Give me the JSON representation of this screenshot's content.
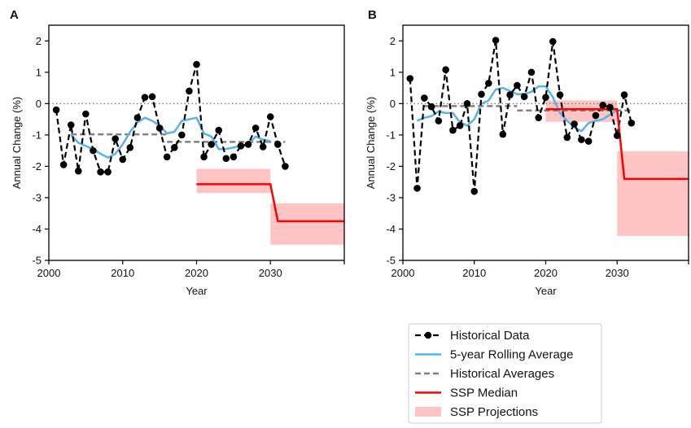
{
  "chart_data": [
    {
      "type": "line",
      "panel_label": "A",
      "xlabel": "Year",
      "ylabel": "Annual Change (%)",
      "xlim": [
        2000,
        2040
      ],
      "ylim": [
        -5,
        2.5
      ],
      "xticks": [
        2000,
        2010,
        2020,
        2030,
        2040
      ],
      "xtick_labels": [
        "2000",
        "2010",
        "2020",
        "2030",
        ""
      ],
      "yticks": [
        -5,
        -4,
        -3,
        -2,
        -1,
        0,
        1,
        2
      ],
      "ytick_labels": [
        "-5",
        "-4",
        "-3",
        "-2",
        "-1",
        "0",
        "1",
        "2"
      ],
      "zero_line": 0,
      "historical": {
        "x": [
          2001,
          2002,
          2003,
          2004,
          2005,
          2006,
          2007,
          2008,
          2009,
          2010,
          2011,
          2012,
          2013,
          2014,
          2015,
          2016,
          2017,
          2018,
          2019,
          2020,
          2021,
          2022,
          2023,
          2024,
          2025,
          2026,
          2027,
          2028,
          2029,
          2030,
          2031,
          2032
        ],
        "y": [
          -0.2,
          -1.95,
          -0.68,
          -2.15,
          -0.33,
          -1.5,
          -2.18,
          -2.18,
          -1.12,
          -1.78,
          -1.4,
          -0.45,
          0.2,
          0.22,
          -0.78,
          -1.7,
          -1.4,
          -1.0,
          0.4,
          1.25,
          -1.7,
          -1.3,
          -0.85,
          -1.75,
          -1.7,
          -1.35,
          -1.3,
          -0.78,
          -1.38,
          -0.42,
          -1.3,
          -2.0
        ]
      },
      "rolling_average": {
        "x": [
          2003,
          2004,
          2005,
          2006,
          2007,
          2008,
          2009,
          2010,
          2011,
          2012,
          2013,
          2014,
          2015,
          2016,
          2017,
          2018,
          2019,
          2020,
          2021,
          2022,
          2023,
          2024,
          2025,
          2026,
          2027,
          2028,
          2029,
          2030
        ],
        "y": [
          -1.0,
          -1.25,
          -1.35,
          -1.45,
          -1.6,
          -1.72,
          -1.6,
          -1.3,
          -0.9,
          -0.6,
          -0.45,
          -0.55,
          -0.7,
          -0.95,
          -0.9,
          -0.55,
          -0.5,
          -0.45,
          -0.95,
          -1.05,
          -1.45,
          -1.45,
          -1.4,
          -1.35,
          -1.3,
          -1.05,
          -1.15,
          -1.2
        ]
      },
      "historical_averages": [
        {
          "x": [
            2003,
            2016
          ],
          "y": [
            -0.98,
            -0.98
          ]
        },
        {
          "x": [
            2016,
            2032
          ],
          "y": [
            -1.22,
            -1.22
          ]
        }
      ],
      "ssp_median": {
        "x": [
          2020,
          2030,
          2031,
          2040
        ],
        "y": [
          -2.57,
          -2.57,
          -3.75,
          -3.75
        ]
      },
      "ssp_projections": [
        {
          "x": [
            2020,
            2030
          ],
          "low": -2.85,
          "high": -2.08
        },
        {
          "x": [
            2030,
            2040
          ],
          "low": -4.5,
          "high": -3.18
        }
      ]
    },
    {
      "type": "line",
      "panel_label": "B",
      "xlabel": "Year",
      "ylabel": "Annual Change (%)",
      "xlim": [
        2000,
        2040
      ],
      "ylim": [
        -5,
        2.5
      ],
      "xticks": [
        2000,
        2010,
        2020,
        2030,
        2040
      ],
      "xtick_labels": [
        "2000",
        "2010",
        "2020",
        "2030",
        ""
      ],
      "yticks": [
        -5,
        -4,
        -3,
        -2,
        -1,
        0,
        1,
        2
      ],
      "ytick_labels": [
        "-5",
        "-4",
        "-3",
        "-2",
        "-1",
        "0",
        "1",
        "2"
      ],
      "zero_line": 0,
      "historical": {
        "x": [
          2001,
          2002,
          2003,
          2004,
          2005,
          2006,
          2007,
          2008,
          2009,
          2010,
          2011,
          2012,
          2013,
          2014,
          2015,
          2016,
          2017,
          2018,
          2019,
          2020,
          2021,
          2022,
          2023,
          2024,
          2025,
          2026,
          2027,
          2028,
          2029,
          2030,
          2031,
          2032
        ],
        "y": [
          0.8,
          -2.7,
          0.18,
          -0.1,
          -0.55,
          1.08,
          -0.85,
          -0.7,
          0.0,
          -2.8,
          0.3,
          0.65,
          2.02,
          -0.98,
          0.28,
          0.58,
          0.22,
          1.0,
          -0.45,
          0.2,
          1.98,
          0.28,
          -1.08,
          -0.65,
          -1.15,
          -1.2,
          -0.38,
          -0.05,
          -0.12,
          -1.02,
          0.28,
          -0.62
        ]
      },
      "rolling_average": {
        "x": [
          2002,
          2003,
          2004,
          2005,
          2006,
          2007,
          2008,
          2009,
          2010,
          2011,
          2012,
          2013,
          2014,
          2015,
          2016,
          2017,
          2018,
          2019,
          2020,
          2021,
          2022,
          2023,
          2024,
          2025,
          2026,
          2027,
          2028,
          2029,
          2030
        ],
        "y": [
          -0.55,
          -0.45,
          -0.4,
          -0.25,
          -0.3,
          -0.3,
          -0.6,
          -0.7,
          -0.5,
          0.0,
          0.1,
          0.45,
          0.5,
          0.4,
          0.3,
          0.3,
          0.38,
          0.55,
          0.55,
          0.2,
          -0.3,
          -0.55,
          -0.75,
          -0.88,
          -0.62,
          -0.55,
          -0.5,
          -0.35,
          -0.2
        ]
      },
      "historical_averages": [
        {
          "x": [
            2003,
            2016
          ],
          "y": [
            -0.08,
            -0.08
          ]
        },
        {
          "x": [
            2016,
            2032
          ],
          "y": [
            -0.22,
            -0.22
          ]
        }
      ],
      "ssp_median": {
        "x": [
          2020,
          2030,
          2031,
          2040
        ],
        "y": [
          -0.18,
          -0.18,
          -2.4,
          -2.4
        ]
      },
      "ssp_projections": [
        {
          "x": [
            2020,
            2030
          ],
          "low": -0.58,
          "high": 0.1
        },
        {
          "x": [
            2030,
            2040
          ],
          "low": -4.22,
          "high": -1.52
        }
      ]
    }
  ],
  "legend": {
    "entries": [
      {
        "label": "Historical Data",
        "style": "historical"
      },
      {
        "label": "5-year Rolling Average",
        "style": "rolling"
      },
      {
        "label": "Historical Averages",
        "style": "averages"
      },
      {
        "label": "SSP Median",
        "style": "median"
      },
      {
        "label": "SSP Projections",
        "style": "projections"
      }
    ]
  },
  "colors": {
    "historical": "#000000",
    "rolling": "#56b4e9",
    "averages": "#808080",
    "median": "#ff0000",
    "projections": "#ffc4c4",
    "zero_line": "#7f7f7f"
  }
}
